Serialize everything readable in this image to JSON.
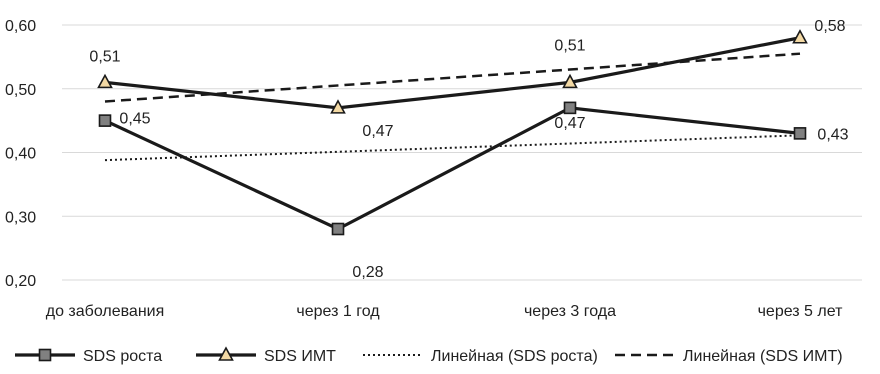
{
  "chart_data": {
    "type": "line",
    "title": "",
    "xlabel": "",
    "ylabel": "",
    "categories": [
      "до заболевания",
      "через 1 год",
      "через 3 года",
      "через 5 лет"
    ],
    "ylim": [
      0.2,
      0.6
    ],
    "yticks": [
      "0,20",
      "0,30",
      "0,40",
      "0,50",
      "0,60"
    ],
    "grid": "horizontal",
    "legend_position": "bottom",
    "series": [
      {
        "name": "SDS роста",
        "values": [
          0.45,
          0.28,
          0.47,
          0.43
        ],
        "labels": [
          "0,45",
          "0,28",
          "0,47",
          "0,43"
        ],
        "marker": "square",
        "line": "solid",
        "color": "#1a1a1a",
        "marker_color": "#808080"
      },
      {
        "name": "SDS ИМТ",
        "values": [
          0.51,
          0.47,
          0.51,
          0.58
        ],
        "labels": [
          "0,51",
          "0,47",
          "0,51",
          "0,58"
        ],
        "marker": "triangle",
        "line": "solid",
        "color": "#1a1a1a",
        "marker_color": "#f3d9a4"
      }
    ],
    "trendlines": [
      {
        "name": "Линейная (SDS роста)",
        "of": "SDS роста",
        "style": "dotted",
        "color": "#1a1a1a"
      },
      {
        "name": "Линейная (SDS ИМТ)",
        "of": "SDS ИМТ",
        "style": "dashed",
        "color": "#1a1a1a"
      }
    ]
  }
}
